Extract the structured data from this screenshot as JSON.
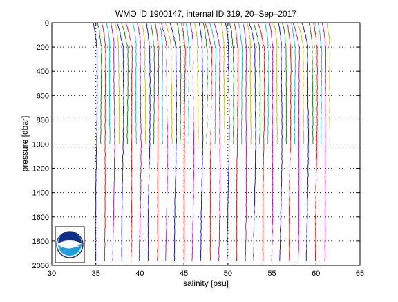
{
  "chart_data": {
    "type": "line",
    "title": "WMO ID 1900147, internal ID 319, 20–Sep–2017",
    "xlabel": "salinity [psu]",
    "ylabel": "pressure [dbar]",
    "xlim": [
      30,
      65
    ],
    "ylim": [
      0,
      2000
    ],
    "y_reversed": true,
    "x_ticks": [
      "30",
      "35",
      "40",
      "45",
      "50",
      "55",
      "60",
      "65"
    ],
    "y_ticks": [
      "0",
      "200",
      "400",
      "600",
      "800",
      "1000",
      "1200",
      "1400",
      "1600",
      "1800",
      "2000"
    ],
    "grid": "dotted horizontal at y ticks; dotted vertical reference lines at offset baselines",
    "reference_lines_x": [
      35,
      40,
      45,
      50,
      55,
      60
    ],
    "profile_offset_step": 0.5,
    "profile_count": 54,
    "deep_profiles_every": 2,
    "series_colors": [
      "#0000ff",
      "#008000",
      "#ff0000",
      "#00bfbf",
      "#bf00bf",
      "#bfbf00"
    ],
    "logo": "noaa-logo",
    "logo_text": "NOAA"
  }
}
